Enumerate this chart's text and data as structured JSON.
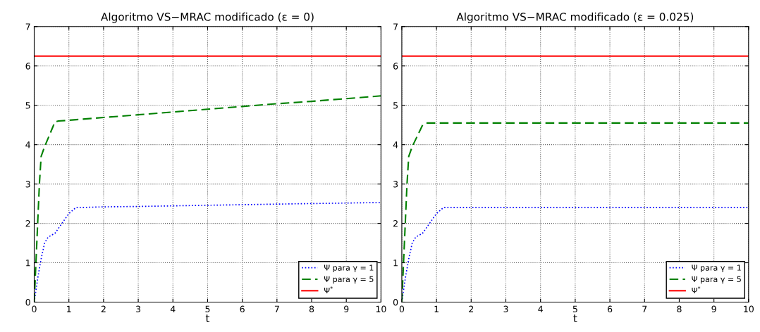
{
  "chart_data": [
    {
      "type": "line",
      "title": "Algoritmo VS−MRAC modificado (ε = 0)",
      "xlabel": "t",
      "xlim": [
        0,
        10
      ],
      "ylim": [
        0,
        7
      ],
      "xticks": [
        0,
        1,
        2,
        3,
        4,
        5,
        6,
        7,
        8,
        9,
        10
      ],
      "yticks": [
        0,
        1,
        2,
        3,
        4,
        5,
        6,
        7
      ],
      "grid": true,
      "legend": "bottom right",
      "series": [
        {
          "name": "Ψ para γ = 1",
          "color": "#0000ff",
          "line_style": "dotted",
          "x": [
            0,
            0.05,
            0.1,
            0.2,
            0.3,
            0.4,
            0.6,
            0.8,
            1.0,
            1.2,
            2,
            3,
            5,
            7,
            10
          ],
          "values": [
            0,
            0.3,
            0.6,
            1.1,
            1.5,
            1.65,
            1.75,
            2.0,
            2.25,
            2.4,
            2.42,
            2.43,
            2.46,
            2.49,
            2.53
          ]
        },
        {
          "name": "Ψ para γ = 5",
          "color": "#008000",
          "line_style": "dashed",
          "x": [
            0,
            0.05,
            0.1,
            0.15,
            0.2,
            0.3,
            0.6,
            0.7,
            1,
            2,
            3,
            4,
            5,
            6,
            7,
            8,
            9,
            10
          ],
          "values": [
            0,
            1,
            2,
            3,
            3.7,
            3.95,
            4.58,
            4.6,
            4.62,
            4.69,
            4.76,
            4.83,
            4.9,
            4.97,
            5.04,
            5.1,
            5.17,
            5.24
          ]
        },
        {
          "name": "Ψ$^{*}$",
          "color": "#ff0000",
          "line_style": "solid",
          "x": [
            0,
            10
          ],
          "values": [
            6.25,
            6.25
          ]
        }
      ]
    },
    {
      "type": "line",
      "title": "Algoritmo VS−MRAC modificado (ε = 0.025)",
      "xlabel": "t",
      "xlim": [
        0,
        10
      ],
      "ylim": [
        0,
        7
      ],
      "xticks": [
        0,
        1,
        2,
        3,
        4,
        5,
        6,
        7,
        8,
        9,
        10
      ],
      "yticks": [
        0,
        1,
        2,
        3,
        4,
        5,
        6,
        7
      ],
      "grid": true,
      "legend": "bottom right",
      "series": [
        {
          "name": "Ψ para γ = 1",
          "color": "#0000ff",
          "line_style": "dotted",
          "x": [
            0,
            0.05,
            0.1,
            0.2,
            0.3,
            0.4,
            0.6,
            0.8,
            1.0,
            1.2,
            2,
            5,
            10
          ],
          "values": [
            0,
            0.3,
            0.6,
            1.1,
            1.5,
            1.65,
            1.75,
            2.0,
            2.25,
            2.4,
            2.4,
            2.4,
            2.4
          ]
        },
        {
          "name": "Ψ para γ = 5",
          "color": "#008000",
          "line_style": "dashed",
          "x": [
            0,
            0.05,
            0.1,
            0.15,
            0.2,
            0.3,
            0.6,
            0.7,
            1,
            5,
            10
          ],
          "values": [
            0,
            1,
            2,
            3,
            3.7,
            3.95,
            4.5,
            4.55,
            4.55,
            4.55,
            4.55
          ]
        },
        {
          "name": "Ψ$^{*}$",
          "color": "#ff0000",
          "line_style": "solid",
          "x": [
            0,
            10
          ],
          "values": [
            6.25,
            6.25
          ]
        }
      ]
    }
  ]
}
